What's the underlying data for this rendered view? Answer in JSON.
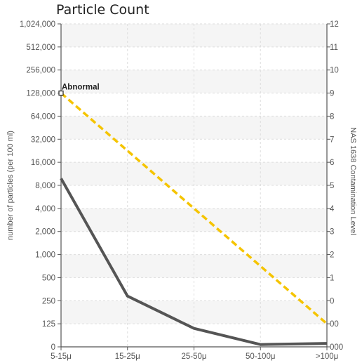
{
  "chart_data": {
    "type": "line",
    "title": "Particle Count",
    "categories": [
      "5-15μ",
      "15-25μ",
      "25-50μ",
      "50-100μ",
      ">100μ"
    ],
    "ylabel_left": "number of particles (per 100 ml)",
    "ylabel_right": "NAS 1638 Contamination Level",
    "y_left_ticks": [
      "0",
      "125",
      "250",
      "500",
      "1,000",
      "2,000",
      "4,000",
      "8,000",
      "16,000",
      "32,000",
      "64,000",
      "128,000",
      "256,000",
      "512,000",
      "1,024,000"
    ],
    "y_right_ticks": [
      "000",
      "00",
      "0",
      "1",
      "2",
      "3",
      "4",
      "5",
      "6",
      "7",
      "8",
      "9",
      "10",
      "11",
      "12"
    ],
    "scale": "log2 (NAS class steps)",
    "series": [
      {
        "values": [
          5.3,
          0.2,
          -1.2,
          -1.9,
          -1.85
        ],
        "color": "#555555"
      },
      {
        "values": [
          9,
          6.5,
          4,
          1.5,
          -1
        ],
        "color": "#f5c400"
      }
    ],
    "annotation": {
      "text": "Abnormal",
      "category": "5-15μ",
      "level": 9
    },
    "grid": true,
    "legend": "none",
    "colors": {
      "band": "#f5f5f5",
      "grid": "#dddddd",
      "axis": "#555555"
    }
  }
}
